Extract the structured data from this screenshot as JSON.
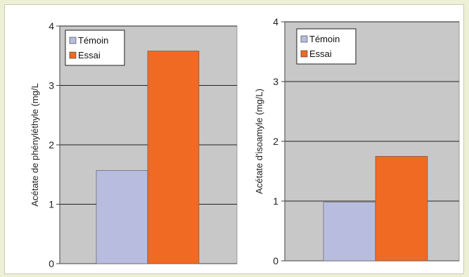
{
  "chart_data": [
    {
      "type": "bar",
      "title": "",
      "ylabel": "Acétate de phényléthyle (mg/L",
      "xlabel": "",
      "ylim": [
        0,
        4
      ],
      "yticks": [
        "0",
        "1",
        "2",
        "3",
        "4"
      ],
      "grid": true,
      "legend": "top-left",
      "series": [
        {
          "name": "Témoin",
          "values": [
            1.57
          ],
          "color": "#b8bde0"
        },
        {
          "name": "Essai",
          "values": [
            3.58
          ],
          "color": "#f06a23"
        }
      ]
    },
    {
      "type": "bar",
      "title": "",
      "ylabel": "Acétate d'isoamyle (mg/L)",
      "xlabel": "",
      "ylim": [
        0,
        4
      ],
      "yticks": [
        "0",
        "1",
        "2",
        "3",
        "4"
      ],
      "grid": true,
      "legend": "top-left",
      "series": [
        {
          "name": "Témoin",
          "values": [
            0.98
          ],
          "color": "#b8bde0"
        },
        {
          "name": "Essai",
          "values": [
            1.75
          ],
          "color": "#f06a23"
        }
      ]
    }
  ]
}
